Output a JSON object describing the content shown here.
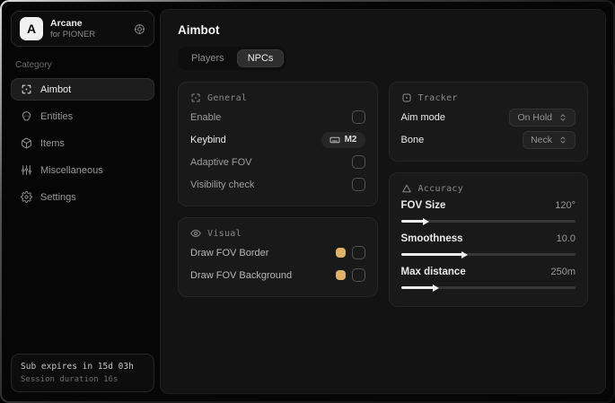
{
  "app": {
    "logo_letter": "A",
    "name": "Arcane",
    "subtitle": "for PIONER"
  },
  "sidebar": {
    "category_label": "Category",
    "items": [
      {
        "label": "Aimbot",
        "icon": "scan-icon",
        "active": true
      },
      {
        "label": "Entities",
        "icon": "skull-icon",
        "active": false
      },
      {
        "label": "Items",
        "icon": "package-icon",
        "active": false
      },
      {
        "label": "Miscellaneous",
        "icon": "sliders-icon",
        "active": false
      },
      {
        "label": "Settings",
        "icon": "gear-icon",
        "active": false
      }
    ],
    "subscription": {
      "expires": "Sub expires in 15d 03h",
      "session": "Session duration 16s"
    }
  },
  "main": {
    "title": "Aimbot",
    "tabs": [
      {
        "label": "Players",
        "active": false
      },
      {
        "label": "NPCs",
        "active": true
      }
    ],
    "general": {
      "title": "General",
      "icon": "scan-icon",
      "rows": [
        {
          "label": "Enable",
          "control": "checkbox",
          "checked": false
        },
        {
          "label": "Keybind",
          "control": "keybind",
          "value": "M2",
          "icon": "keyboard-icon"
        },
        {
          "label": "Adaptive FOV",
          "control": "checkbox",
          "checked": false
        },
        {
          "label": "Visibility check",
          "control": "checkbox",
          "checked": false
        }
      ]
    },
    "visual": {
      "title": "Visual",
      "icon": "eye-icon",
      "rows": [
        {
          "label": "Draw FOV Border",
          "control": "color-checkbox",
          "color": "#dfb269",
          "checked": false
        },
        {
          "label": "Draw FOV Background",
          "control": "color-checkbox",
          "color": "#dfb269",
          "checked": false
        }
      ]
    },
    "tracker": {
      "title": "Tracker",
      "icon": "focus-icon",
      "rows": [
        {
          "label": "Aim mode",
          "control": "select",
          "value": "On Hold"
        },
        {
          "label": "Bone",
          "control": "select",
          "value": "Neck"
        }
      ]
    },
    "accuracy": {
      "title": "Accuracy",
      "icon": "delta-icon",
      "rows": [
        {
          "label": "FOV Size",
          "value": "120°",
          "fill_percent": 13
        },
        {
          "label": "Smoothness",
          "value": "10.0",
          "fill_percent": 35
        },
        {
          "label": "Max distance",
          "value": "250m",
          "fill_percent": 19
        }
      ]
    }
  },
  "colors": {
    "accent_gold": "#dfb269",
    "slider_fill": "#ececec"
  }
}
